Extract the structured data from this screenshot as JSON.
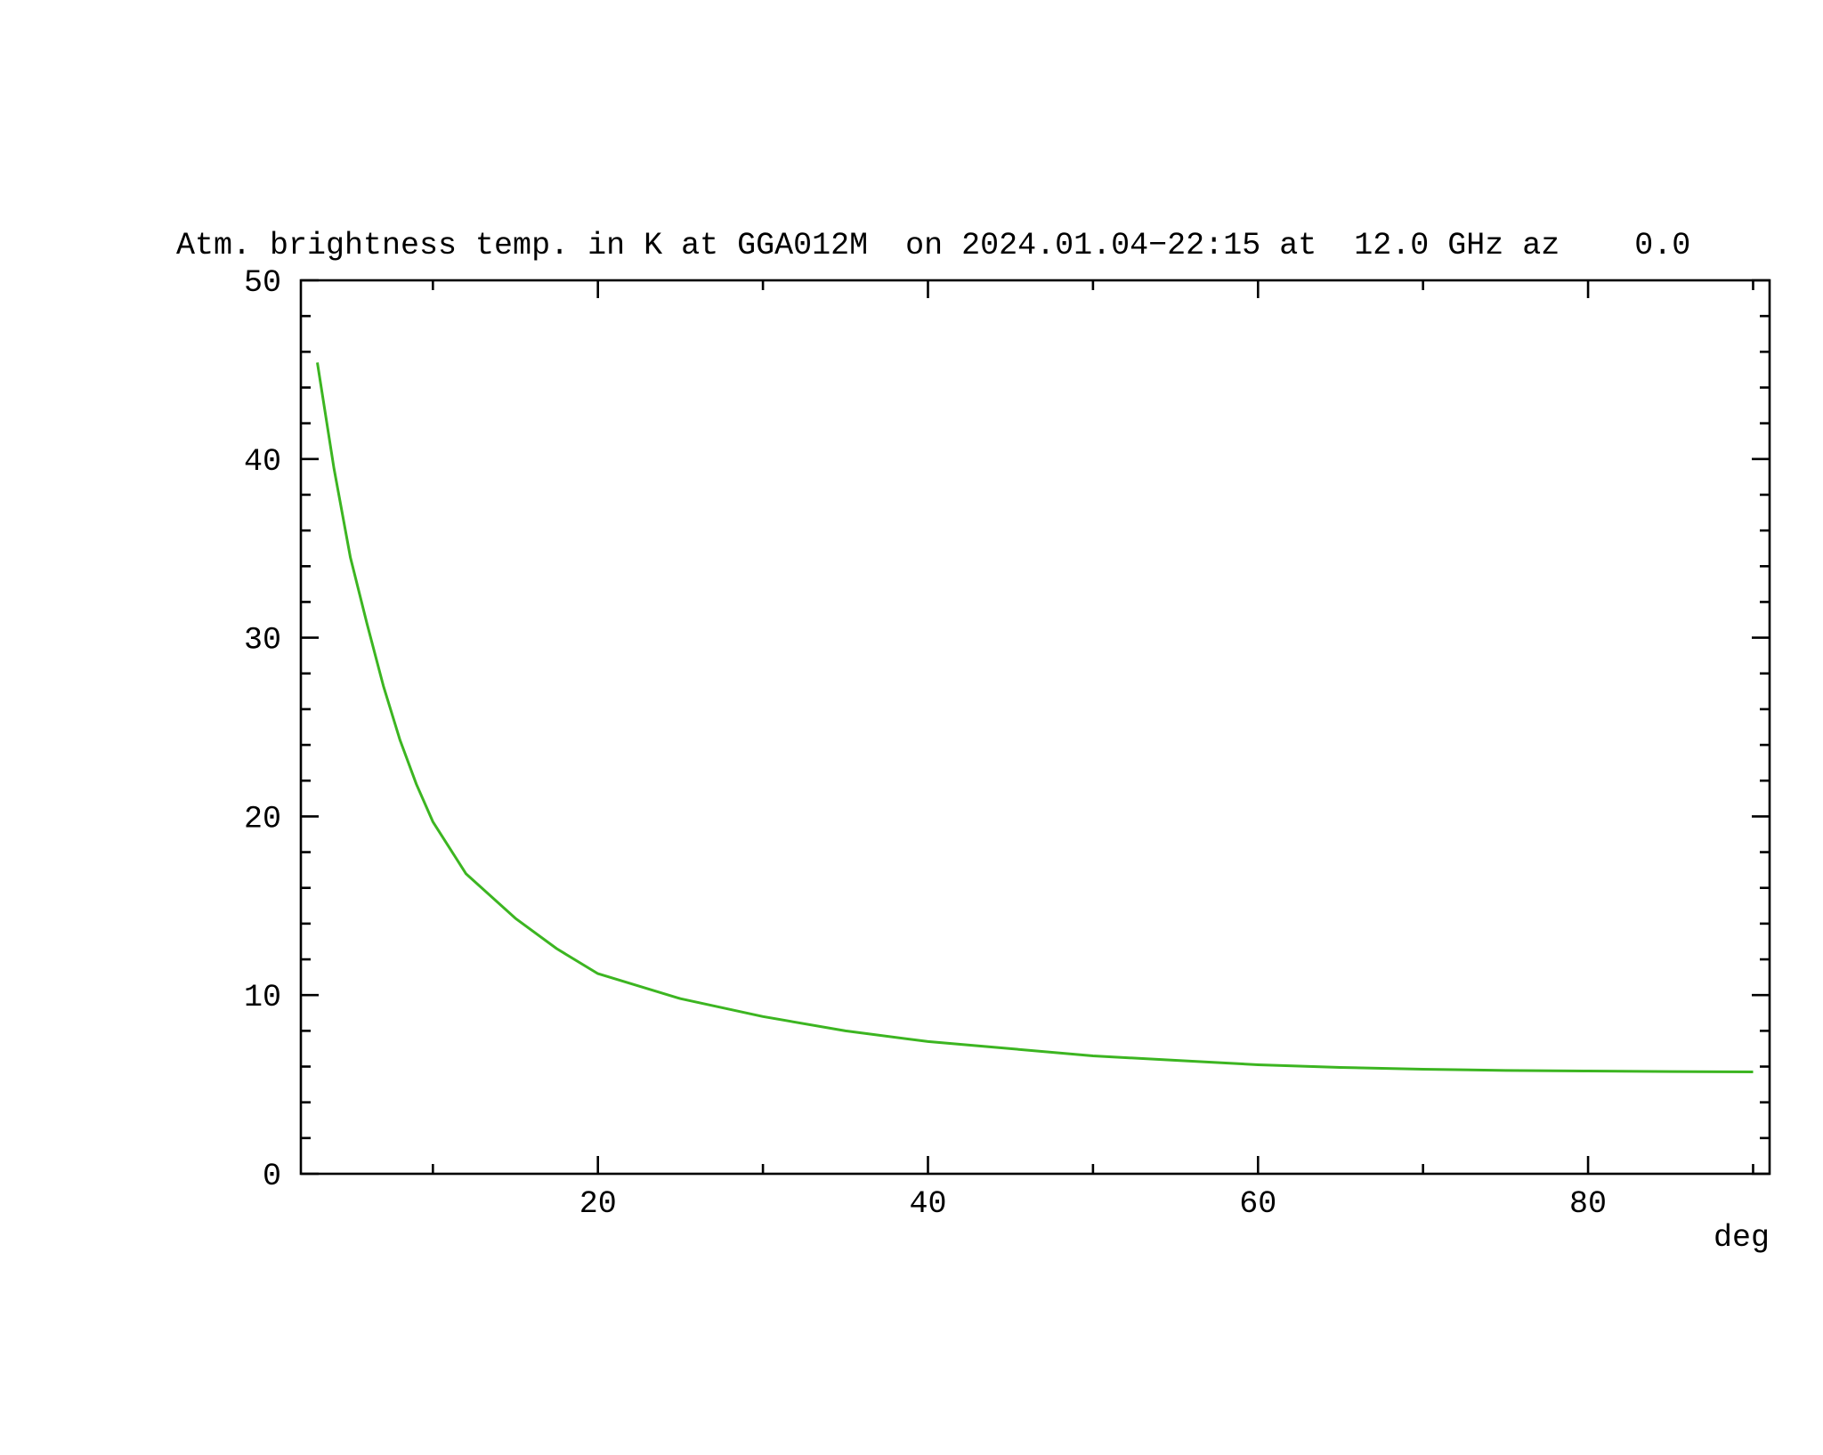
{
  "chart_data": {
    "type": "line",
    "title": "Atm. brightness temp. in K at GGA012M  on 2024.01.04−22:15 at  12.0 GHz az    0.0",
    "x_label": "deg",
    "xlim": [
      2,
      91
    ],
    "ylim": [
      0,
      50
    ],
    "xticks": [
      20,
      40,
      60,
      80
    ],
    "yticks": [
      0,
      10,
      20,
      30,
      40,
      50
    ],
    "xminorticks": [
      10,
      30,
      50,
      70,
      90
    ],
    "yminorticks": [
      2,
      4,
      6,
      8,
      12,
      14,
      16,
      18,
      22,
      24,
      26,
      28,
      32,
      34,
      36,
      38,
      42,
      44,
      46,
      48
    ],
    "x": [
      3,
      4,
      5,
      6,
      7,
      8,
      9,
      10,
      12,
      15,
      17.5,
      20,
      25,
      30,
      35,
      40,
      45,
      50,
      55,
      60,
      65,
      70,
      75,
      80,
      85,
      90
    ],
    "series": [
      {
        "color": "#3cb521",
        "values": [
          45.4,
          39.5,
          34.5,
          30.8,
          27.3,
          24.3,
          21.8,
          19.7,
          16.8,
          14.3,
          12.6,
          11.2,
          9.8,
          8.8,
          8.0,
          7.4,
          7.0,
          6.6,
          6.35,
          6.1,
          5.95,
          5.85,
          5.78,
          5.75,
          5.72,
          5.7
        ]
      }
    ]
  }
}
